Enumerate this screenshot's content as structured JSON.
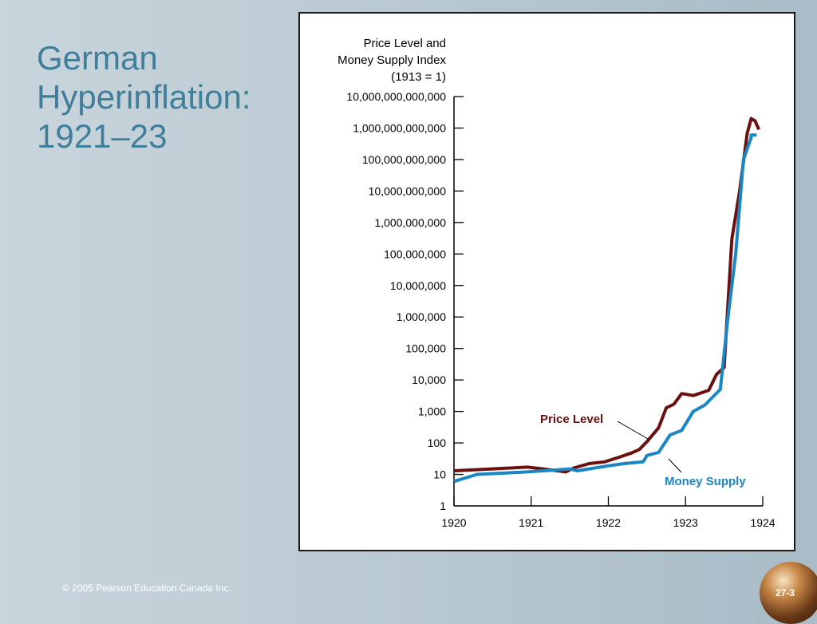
{
  "slide": {
    "title_lines": [
      "German",
      "Hyperinflation:",
      "1921–23"
    ],
    "copyright": "© 2005 Pearson Education Canada Inc.",
    "slide_number": "27-3"
  },
  "colors": {
    "price_level": "#6b0f0f",
    "money_supply": "#1a86c2",
    "title": "#3f7f9c"
  },
  "chart_data": {
    "type": "line",
    "ylabel_lines": [
      "Price Level and",
      "Money Supply Index",
      "(1913 = 1)"
    ],
    "y_scale": "log",
    "ylim": [
      1,
      10000000000000
    ],
    "y_ticks": [
      {
        "value": 1,
        "label": "1"
      },
      {
        "value": 10,
        "label": "10"
      },
      {
        "value": 100,
        "label": "100"
      },
      {
        "value": 1000,
        "label": "1,000"
      },
      {
        "value": 10000,
        "label": "10,000"
      },
      {
        "value": 100000,
        "label": "100,000"
      },
      {
        "value": 1000000,
        "label": "1,000,000"
      },
      {
        "value": 10000000,
        "label": "10,000,000"
      },
      {
        "value": 100000000,
        "label": "100,000,000"
      },
      {
        "value": 1000000000,
        "label": "1,000,000,000"
      },
      {
        "value": 10000000000,
        "label": "10,000,000,000"
      },
      {
        "value": 100000000000,
        "label": "100,000,000,000"
      },
      {
        "value": 1000000000000,
        "label": "1,000,000,000,000"
      },
      {
        "value": 10000000000000,
        "label": "10,000,000,000,000"
      }
    ],
    "xlim": [
      1920,
      1924
    ],
    "x_ticks": [
      "1920",
      "1921",
      "1922",
      "1923",
      "1924"
    ],
    "grid": false,
    "series": [
      {
        "name": "Price Level",
        "color": "#6b0f0f",
        "points": [
          [
            1920.0,
            13
          ],
          [
            1920.5,
            15
          ],
          [
            1920.95,
            17
          ],
          [
            1921.15,
            15
          ],
          [
            1921.45,
            12
          ],
          [
            1921.55,
            16
          ],
          [
            1921.75,
            22
          ],
          [
            1921.95,
            25
          ],
          [
            1922.15,
            36
          ],
          [
            1922.3,
            48
          ],
          [
            1922.4,
            62
          ],
          [
            1922.5,
            110
          ],
          [
            1922.65,
            300
          ],
          [
            1922.75,
            1300
          ],
          [
            1922.85,
            1700
          ],
          [
            1922.95,
            3700
          ],
          [
            1923.1,
            3200
          ],
          [
            1923.3,
            4700
          ],
          [
            1923.4,
            15000
          ],
          [
            1923.5,
            25000
          ],
          [
            1923.6,
            300000000
          ],
          [
            1923.7,
            10000000000
          ],
          [
            1923.8,
            700000000000
          ],
          [
            1923.85,
            2000000000000
          ],
          [
            1923.9,
            1700000000000
          ],
          [
            1923.95,
            900000000000
          ]
        ]
      },
      {
        "name": "Money Supply",
        "color": "#1a86c2",
        "points": [
          [
            1920.0,
            6
          ],
          [
            1920.3,
            10
          ],
          [
            1920.95,
            12
          ],
          [
            1921.35,
            14
          ],
          [
            1921.5,
            15
          ],
          [
            1921.6,
            13
          ],
          [
            1921.95,
            18
          ],
          [
            1922.2,
            22
          ],
          [
            1922.45,
            25
          ],
          [
            1922.5,
            40
          ],
          [
            1922.65,
            50
          ],
          [
            1922.8,
            180
          ],
          [
            1922.95,
            250
          ],
          [
            1923.1,
            1000
          ],
          [
            1923.25,
            1600
          ],
          [
            1923.45,
            5000
          ],
          [
            1923.55,
            1000000
          ],
          [
            1923.65,
            100000000
          ],
          [
            1923.75,
            100000000000
          ],
          [
            1923.85,
            500000000000
          ],
          [
            1923.85,
            600000000000
          ],
          [
            1923.92,
            600000000000
          ]
        ]
      }
    ],
    "annotations": [
      {
        "text": "Price Level",
        "series": "Price Level"
      },
      {
        "text": "Money Supply",
        "series": "Money Supply"
      }
    ]
  }
}
